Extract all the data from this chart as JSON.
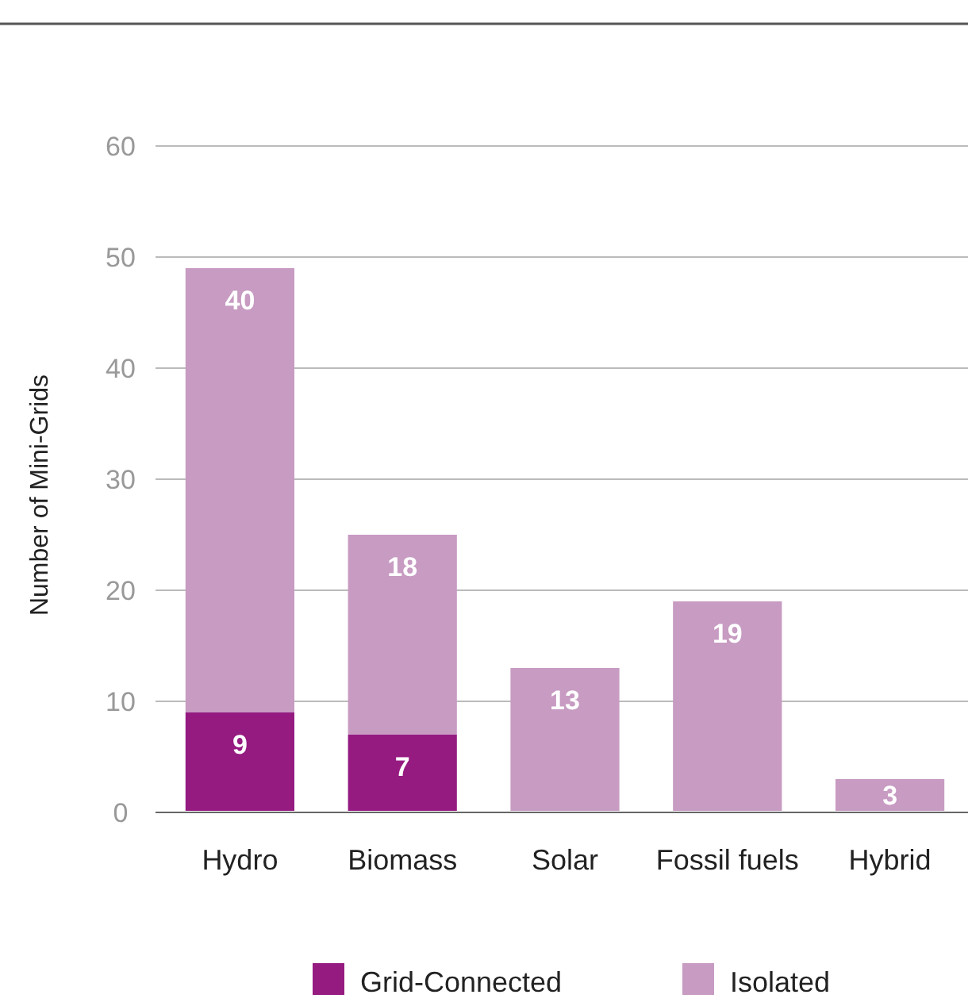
{
  "chart_data": {
    "type": "bar",
    "ylabel": "Number of Mini-Grids",
    "categories": [
      "Hydro",
      "Biomass",
      "Solar",
      "Fossil fuels",
      "Hybrid"
    ],
    "series": [
      {
        "name": "Grid-Connected",
        "color": "#951b81",
        "values": [
          9,
          7,
          null,
          null,
          null
        ]
      },
      {
        "name": "Isolated",
        "color": "#c79bc2",
        "values": [
          40,
          18,
          13,
          19,
          3
        ]
      }
    ],
    "stacked": true,
    "ylim": [
      0,
      60
    ],
    "yticks": [
      0,
      10,
      20,
      30,
      40,
      50,
      60
    ],
    "grid": "y",
    "legend": "bottom",
    "data_labels": true
  }
}
